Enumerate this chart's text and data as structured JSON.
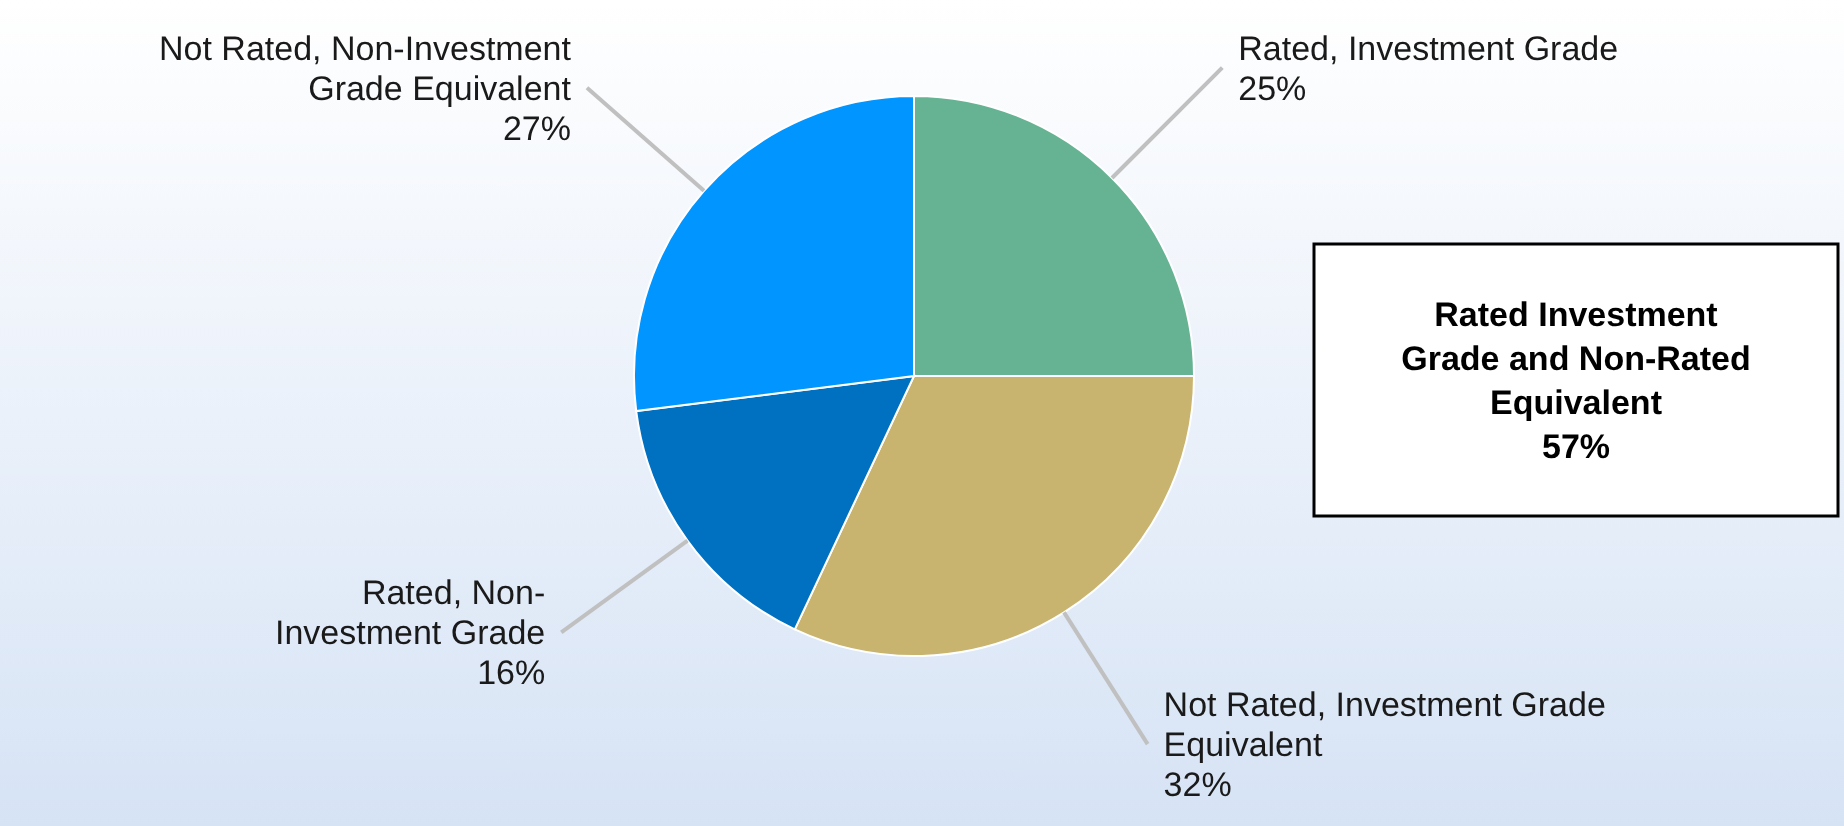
{
  "chart_data": {
    "type": "pie",
    "categories": [
      "Rated, Investment Grade",
      "Not Rated, Investment Grade\nEquivalent",
      "Rated, Non-\nInvestment Grade",
      "Not Rated, Non-Investment\nGrade Equivalent"
    ],
    "values": [
      25,
      32,
      16,
      27
    ],
    "colors": [
      "#66b393",
      "#c8b46e",
      "#0070c0",
      "#0095ff"
    ],
    "value_labels": [
      "25%",
      "32%",
      "16%",
      "27%"
    ],
    "annotations": [
      "Rated Investment\nGrade and Non-Rated\nEquivalent\n57%"
    ]
  }
}
